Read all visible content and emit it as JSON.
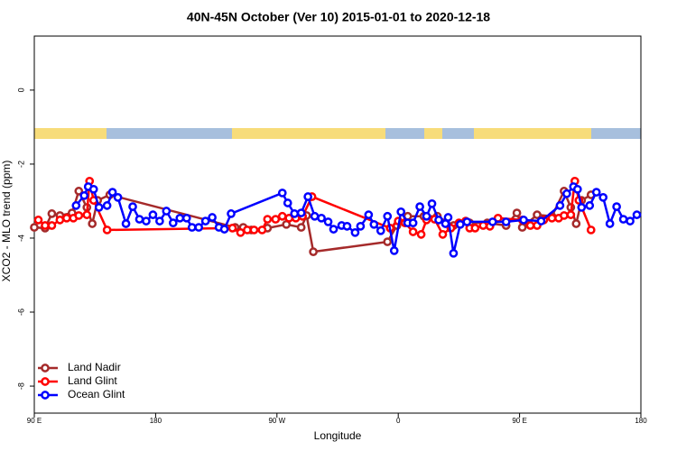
{
  "chart_data": {
    "type": "line",
    "title": "40N-45N October (Ver 10)   2015-01-01 to 2020-12-18",
    "x_label": "Longitude",
    "y_label": "XCO2 - MLO trend (ppm)",
    "xlim": [
      90,
      540
    ],
    "ylim": [
      -8.73,
      1.46
    ],
    "xticks": [
      {
        "value": 90,
        "label": "90 E"
      },
      180,
      {
        "value": 270,
        "label": "90 W"
      },
      {
        "value": 360,
        "label": "0"
      },
      {
        "value": 450,
        "label": "90 E"
      },
      {
        "value": 540,
        "label": "180"
      }
    ],
    "yticks": [
      0,
      -2,
      -4,
      -6,
      -8
    ],
    "legend": "bottom-left",
    "series": [
      {
        "name": "Land Nadir",
        "color": "#a52a2a",
        "x": [
          90,
          98,
          103,
          109,
          118,
          123,
          129,
          133,
          137,
          146,
          239,
          245,
          251,
          263,
          277,
          288,
          292,
          297,
          352,
          359,
          367,
          379,
          389,
          401,
          413,
          426,
          440,
          448,
          452,
          463,
          474,
          483,
          488,
          492,
          496,
          503
        ],
        "values": [
          -3.71,
          -3.73,
          -3.34,
          -3.39,
          -3.32,
          -2.73,
          -3.17,
          -3.61,
          -2.98,
          -2.83,
          -3.71,
          -3.71,
          -3.78,
          -3.73,
          -3.63,
          -3.71,
          -3.39,
          -4.37,
          -4.1,
          -3.66,
          -3.41,
          -3.41,
          -3.41,
          -3.66,
          -3.59,
          -3.59,
          -3.66,
          -3.32,
          -3.71,
          -3.37,
          -3.41,
          -2.73,
          -3.17,
          -3.61,
          -2.98,
          -2.83
        ]
      },
      {
        "name": "Land Glint",
        "color": "#ff0000",
        "x": [
          93,
          98,
          103,
          109,
          114,
          119,
          123,
          129,
          131,
          134,
          144,
          237,
          243,
          248,
          253,
          259,
          263,
          269,
          274,
          279,
          284,
          289,
          296,
          354,
          360,
          365,
          371,
          377,
          381,
          387,
          393,
          399,
          405,
          410,
          413,
          417,
          423,
          428,
          434,
          452,
          458,
          463,
          468,
          474,
          479,
          483,
          488,
          491,
          494,
          503
        ],
        "values": [
          -3.51,
          -3.66,
          -3.66,
          -3.51,
          -3.46,
          -3.46,
          -3.39,
          -3.37,
          -2.46,
          -2.98,
          -3.78,
          -3.73,
          -3.85,
          -3.78,
          -3.78,
          -3.78,
          -3.49,
          -3.49,
          -3.41,
          -3.46,
          -3.46,
          -3.41,
          -2.88,
          -3.73,
          -3.54,
          -3.59,
          -3.83,
          -3.9,
          -3.51,
          -3.49,
          -3.9,
          -3.73,
          -3.59,
          -3.54,
          -3.73,
          -3.73,
          -3.66,
          -3.68,
          -3.46,
          -3.51,
          -3.66,
          -3.66,
          -3.51,
          -3.46,
          -3.46,
          -3.39,
          -3.37,
          -2.46,
          -2.98,
          -3.78
        ]
      },
      {
        "name": "Ocean Glint",
        "color": "#0000ff",
        "x": [
          121,
          127,
          130,
          134,
          138,
          144,
          148,
          152,
          158,
          163,
          168,
          173,
          178,
          183,
          188,
          193,
          198,
          203,
          207,
          212,
          217,
          222,
          227,
          231,
          236,
          274,
          278,
          283,
          288,
          293,
          298,
          303,
          308,
          312,
          318,
          322,
          328,
          332,
          338,
          342,
          347,
          352,
          357,
          362,
          367,
          371,
          376,
          381,
          385,
          390,
          395,
          397,
          401,
          406,
          411,
          430,
          440,
          453,
          466,
          480,
          485,
          490,
          493,
          496,
          502,
          507,
          512,
          517,
          522,
          527,
          532,
          537
        ],
        "values": [
          -3.12,
          -2.85,
          -2.61,
          -2.68,
          -3.17,
          -3.12,
          -2.76,
          -2.9,
          -3.61,
          -3.15,
          -3.49,
          -3.54,
          -3.37,
          -3.54,
          -3.27,
          -3.59,
          -3.46,
          -3.46,
          -3.71,
          -3.71,
          -3.54,
          -3.44,
          -3.71,
          -3.76,
          -3.34,
          -2.78,
          -3.05,
          -3.34,
          -3.32,
          -2.88,
          -3.41,
          -3.46,
          -3.56,
          -3.76,
          -3.66,
          -3.68,
          -3.85,
          -3.68,
          -3.37,
          -3.63,
          -3.8,
          -3.41,
          -4.34,
          -3.29,
          -3.59,
          -3.59,
          -3.15,
          -3.41,
          -3.07,
          -3.51,
          -3.61,
          -3.44,
          -4.41,
          -3.63,
          -3.56,
          -3.56,
          -3.56,
          -3.51,
          -3.54,
          -3.12,
          -2.8,
          -2.61,
          -2.68,
          -3.17,
          -3.12,
          -2.76,
          -2.9,
          -3.61,
          -3.15,
          -3.49,
          -3.54,
          -3.37
        ]
      }
    ]
  }
}
